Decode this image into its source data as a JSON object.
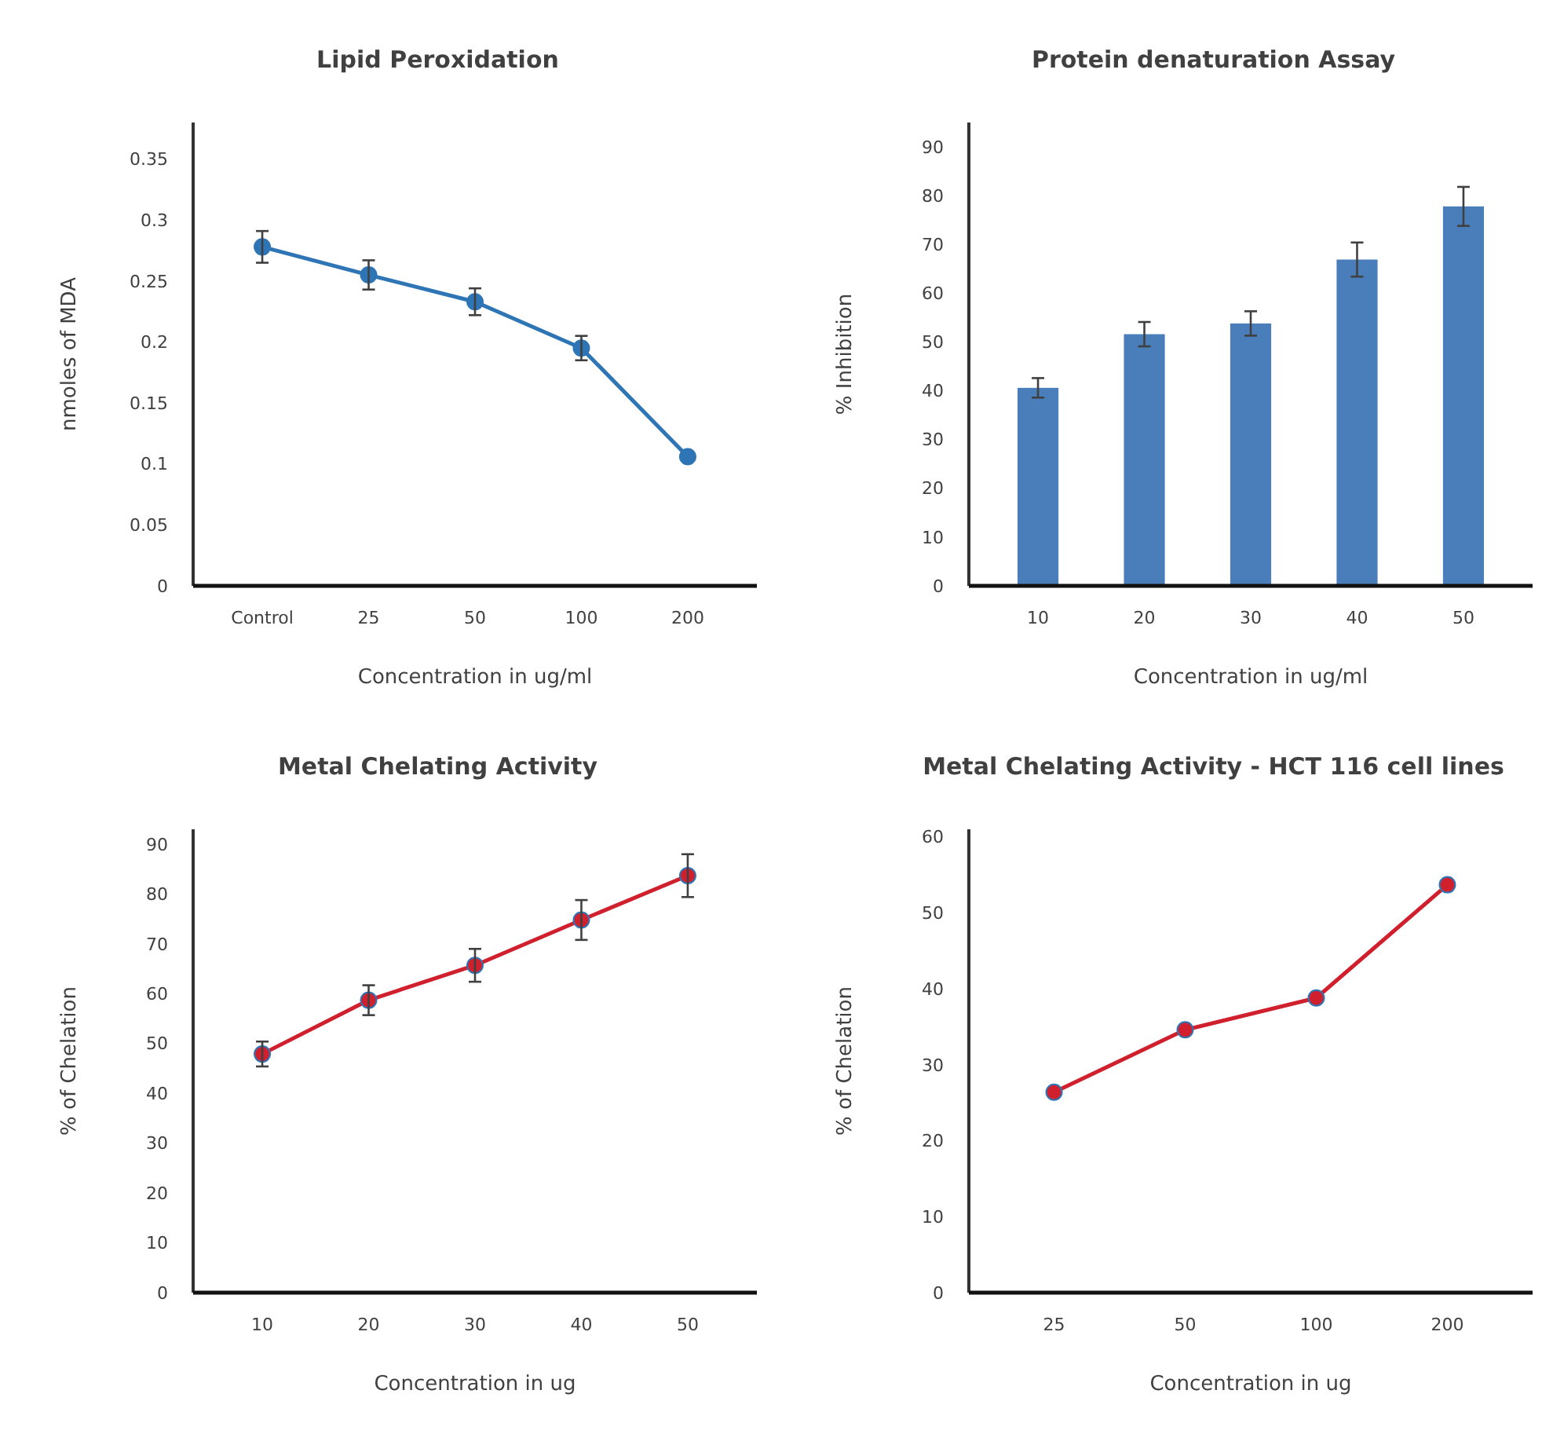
{
  "chart_data": [
    {
      "type": "line",
      "title": "Lipid Peroxidation",
      "xlabel": "Concentration in ug/ml",
      "ylabel": "nmoles of MDA",
      "categories": [
        "Control",
        "25",
        "50",
        "100",
        "200"
      ],
      "marker": "circle",
      "series": [
        {
          "color": "#2e75b6",
          "values": [
            0.278,
            0.255,
            0.233,
            0.195,
            0.106
          ],
          "errors": [
            0.013,
            0.012,
            0.011,
            0.01,
            null
          ]
        }
      ],
      "ylim": [
        0,
        0.38
      ],
      "yticks": [
        {
          "value": 0,
          "label": "0"
        },
        {
          "value": 0.05,
          "label": "0.05"
        },
        {
          "value": 0.1,
          "label": "0.1"
        },
        {
          "value": 0.15,
          "label": "0.15"
        },
        {
          "value": 0.2,
          "label": "0.2"
        },
        {
          "value": 0.25,
          "label": "0.25"
        },
        {
          "value": 0.3,
          "label": "0.3"
        },
        {
          "value": 0.35,
          "label": "0.35"
        }
      ]
    },
    {
      "type": "bar",
      "title": "Protein denaturation Assay",
      "xlabel": "Concentration in ug/ml",
      "ylabel": "% Inhibition",
      "categories": [
        "10",
        "20",
        "30",
        "40",
        "50"
      ],
      "series": [
        {
          "color": "#4a7ebb",
          "values": [
            40.6,
            51.6,
            53.8,
            66.9,
            77.8
          ],
          "errors": [
            2,
            2.5,
            2.5,
            3.5,
            4
          ]
        }
      ],
      "ylim": [
        0,
        95
      ],
      "yticks": [
        0,
        10,
        20,
        30,
        40,
        50,
        60,
        70,
        80,
        90
      ]
    },
    {
      "type": "line",
      "title": "Metal Chelating Activity",
      "xlabel": "Concentration in ug",
      "ylabel": "% of Chelation",
      "categories": [
        "10",
        "20",
        "30",
        "40",
        "50"
      ],
      "marker": "circle",
      "series": [
        {
          "color": "#d0202e",
          "values": [
            47.9,
            58.7,
            65.7,
            74.8,
            83.7
          ],
          "errors": [
            2.5,
            3,
            3.3,
            4,
            4.3
          ]
        }
      ],
      "ylim": [
        0,
        93
      ],
      "yticks": [
        0,
        10,
        20,
        30,
        40,
        50,
        60,
        70,
        80,
        90
      ]
    },
    {
      "type": "line",
      "title": "Metal Chelating Activity - HCT 116 cell lines",
      "xlabel": "Concentration in ug",
      "ylabel": "% of Chelation",
      "categories": [
        "25",
        "50",
        "100",
        "200"
      ],
      "marker": "circle",
      "series": [
        {
          "color": "#d0202e",
          "values": [
            26.4,
            34.6,
            38.8,
            53.7
          ]
        }
      ],
      "ylim": [
        0,
        61
      ],
      "yticks": [
        0,
        10,
        20,
        30,
        40,
        50,
        60
      ]
    }
  ]
}
